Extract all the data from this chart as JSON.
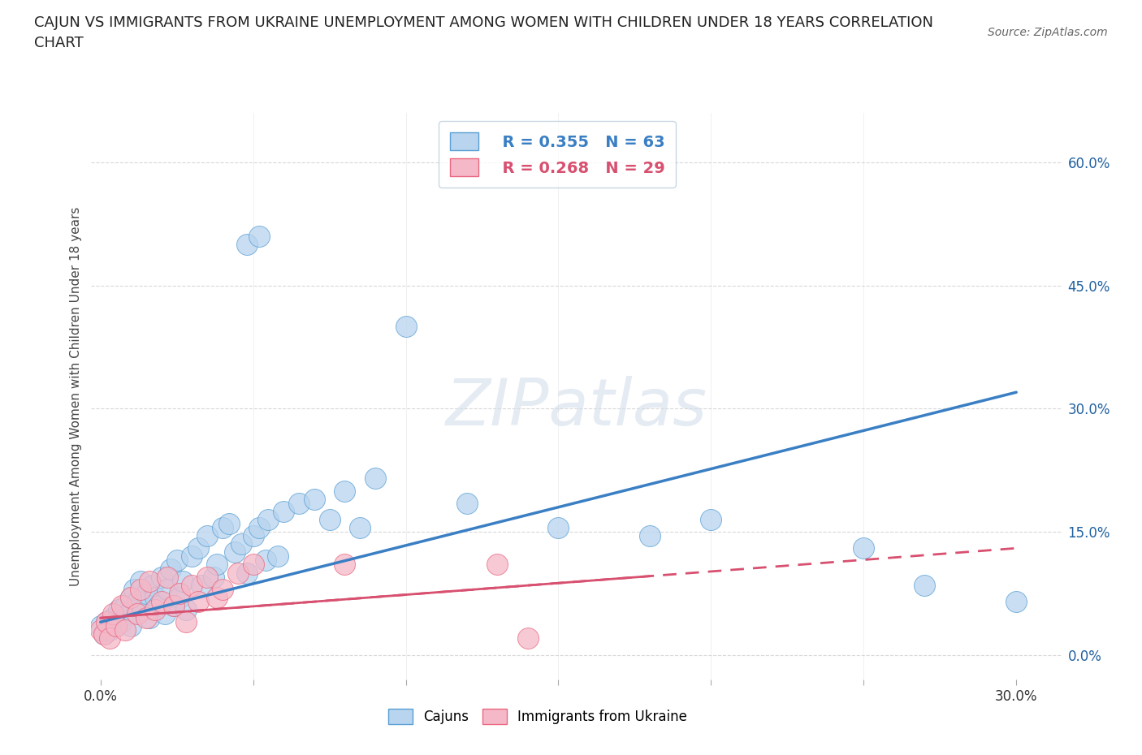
{
  "title": "CAJUN VS IMMIGRANTS FROM UKRAINE UNEMPLOYMENT AMONG WOMEN WITH CHILDREN UNDER 18 YEARS CORRELATION\nCHART",
  "source": "Source: ZipAtlas.com",
  "ylabel": "Unemployment Among Women with Children Under 18 years",
  "xaxis_ticks": [
    0.0,
    0.05,
    0.1,
    0.15,
    0.2,
    0.25,
    0.3
  ],
  "yaxis_ticks": [
    0.0,
    0.15,
    0.3,
    0.45,
    0.6
  ],
  "xlim": [
    -0.003,
    0.315
  ],
  "ylim": [
    -0.03,
    0.66
  ],
  "cajun_color": "#b8d4ee",
  "ukraine_color": "#f5b8c8",
  "cajun_edge_color": "#5a9fd4",
  "ukraine_edge_color": "#e86880",
  "cajun_line_color": "#3a7fc4",
  "ukraine_line_color": "#d85070",
  "watermark_text": "ZIPatlas",
  "legend_cajun_R": "R = 0.355",
  "legend_cajun_N": "N = 63",
  "legend_ukraine_R": "R = 0.268",
  "legend_ukraine_N": "N = 29",
  "cajun_scatter_x": [
    0.0,
    0.001,
    0.002,
    0.003,
    0.004,
    0.005,
    0.006,
    0.007,
    0.008,
    0.009,
    0.01,
    0.01,
    0.011,
    0.012,
    0.013,
    0.014,
    0.015,
    0.016,
    0.017,
    0.018,
    0.019,
    0.02,
    0.021,
    0.022,
    0.023,
    0.024,
    0.025,
    0.026,
    0.027,
    0.028,
    0.03,
    0.032,
    0.033,
    0.035,
    0.037,
    0.038,
    0.04,
    0.042,
    0.044,
    0.046,
    0.048,
    0.05,
    0.052,
    0.054,
    0.055,
    0.058,
    0.06,
    0.065,
    0.07,
    0.075,
    0.08,
    0.085,
    0.09,
    0.048,
    0.052,
    0.1,
    0.12,
    0.15,
    0.18,
    0.2,
    0.25,
    0.27,
    0.3
  ],
  "cajun_scatter_y": [
    0.035,
    0.025,
    0.04,
    0.03,
    0.045,
    0.035,
    0.055,
    0.04,
    0.06,
    0.05,
    0.07,
    0.035,
    0.08,
    0.065,
    0.09,
    0.055,
    0.075,
    0.045,
    0.085,
    0.07,
    0.06,
    0.095,
    0.05,
    0.08,
    0.105,
    0.06,
    0.115,
    0.07,
    0.09,
    0.055,
    0.12,
    0.13,
    0.085,
    0.145,
    0.095,
    0.11,
    0.155,
    0.16,
    0.125,
    0.135,
    0.1,
    0.145,
    0.155,
    0.115,
    0.165,
    0.12,
    0.175,
    0.185,
    0.19,
    0.165,
    0.2,
    0.155,
    0.215,
    0.5,
    0.51,
    0.4,
    0.185,
    0.155,
    0.145,
    0.165,
    0.13,
    0.085,
    0.065
  ],
  "ukraine_scatter_x": [
    0.0,
    0.001,
    0.002,
    0.003,
    0.004,
    0.005,
    0.007,
    0.008,
    0.01,
    0.012,
    0.013,
    0.015,
    0.016,
    0.018,
    0.02,
    0.022,
    0.024,
    0.026,
    0.028,
    0.03,
    0.032,
    0.035,
    0.038,
    0.04,
    0.045,
    0.05,
    0.08,
    0.13,
    0.14
  ],
  "ukraine_scatter_y": [
    0.03,
    0.025,
    0.04,
    0.02,
    0.05,
    0.035,
    0.06,
    0.03,
    0.07,
    0.05,
    0.08,
    0.045,
    0.09,
    0.055,
    0.065,
    0.095,
    0.06,
    0.075,
    0.04,
    0.085,
    0.065,
    0.095,
    0.07,
    0.08,
    0.1,
    0.11,
    0.11,
    0.11,
    0.02
  ],
  "cajun_trend_x": [
    0.0,
    0.3
  ],
  "cajun_trend_y": [
    0.04,
    0.32
  ],
  "ukraine_trend_x": [
    0.0,
    0.3
  ],
  "ukraine_trend_y": [
    0.045,
    0.13
  ],
  "background_color": "#ffffff",
  "grid_color": "#d8d8d8"
}
